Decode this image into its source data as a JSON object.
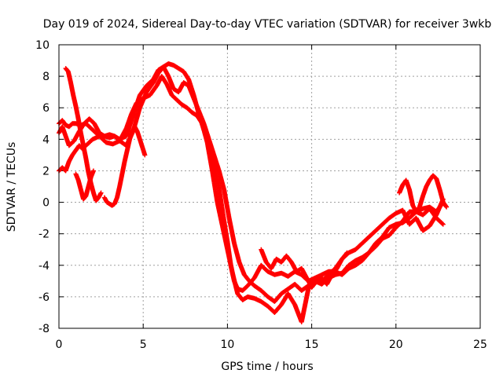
{
  "chart_data": {
    "type": "scatter",
    "title": "Day 019 of 2024, Sidereal Day-to-day VTEC variation (SDTVAR) for receiver 3wkb",
    "xlabel": "GPS time / hours",
    "ylabel": "SDTVAR / TECUs",
    "xlim": [
      0,
      25
    ],
    "ylim": [
      -8,
      10
    ],
    "xticks": [
      "0",
      "5",
      "10",
      "15",
      "20",
      "25"
    ],
    "yticks": [
      "-8",
      "-6",
      "-4",
      "-2",
      "0",
      "2",
      "4",
      "6",
      "8",
      "10"
    ],
    "grid": true,
    "marker": "plus",
    "color": "#ff0000",
    "series": [
      {
        "x": [
          0.0,
          0.2,
          0.4,
          0.6,
          0.8,
          1.0,
          1.3,
          1.6,
          2.0,
          2.4,
          2.8,
          3.2,
          3.6,
          4.0,
          4.4,
          4.8,
          5.2,
          5.6,
          5.9,
          6.2,
          6.5,
          6.8,
          7.1,
          7.4,
          7.7,
          8.0,
          8.3,
          8.6,
          8.9,
          9.2,
          9.5,
          9.8,
          10.0,
          10.2,
          10.4,
          10.6,
          10.9,
          11.2,
          11.6,
          12.0,
          12.4,
          12.8,
          13.2,
          13.6,
          14.0,
          14.4,
          14.8,
          15.2,
          15.6,
          16.0,
          16.4,
          16.8,
          17.2,
          17.6,
          18.0,
          18.4,
          18.8,
          19.2,
          19.6,
          20.0,
          20.4,
          20.8,
          21.2,
          21.6,
          22.0,
          22.4,
          22.8
        ],
        "y": [
          5.0,
          5.2,
          4.9,
          4.8,
          5.0,
          5.0,
          4.9,
          5.0,
          4.6,
          4.2,
          3.8,
          3.7,
          3.9,
          3.6,
          4.5,
          6.0,
          7.0,
          7.6,
          8.2,
          8.6,
          8.8,
          8.7,
          8.5,
          8.3,
          7.8,
          6.8,
          5.6,
          4.6,
          3.6,
          2.4,
          0.9,
          -1.2,
          -2.5,
          -4.0,
          -5.0,
          -5.5,
          -5.6,
          -5.3,
          -4.8,
          -4.0,
          -4.4,
          -4.6,
          -4.5,
          -4.7,
          -4.4,
          -4.6,
          -5.0,
          -4.8,
          -4.6,
          -4.4,
          -4.4,
          -4.6,
          -4.2,
          -4.0,
          -3.7,
          -3.2,
          -2.8,
          -2.3,
          -2.1,
          -1.6,
          -1.2,
          -0.6,
          -0.6,
          -0.8,
          -0.4,
          -1.0,
          -1.4
        ]
      },
      {
        "x": [
          0.0,
          0.2,
          0.4,
          0.6,
          0.9,
          1.2,
          1.5,
          1.8,
          2.1,
          2.4,
          2.7,
          3.0,
          3.3,
          3.6,
          4.0,
          4.3,
          4.6,
          5.0,
          5.4,
          5.8,
          6.1,
          6.4,
          6.7,
          7.0,
          7.3,
          7.6,
          7.9,
          8.2,
          8.5,
          8.8,
          9.1,
          9.4,
          9.7,
          10.0,
          10.3,
          10.6,
          10.9,
          11.2,
          11.6,
          12.0,
          12.4,
          12.8,
          13.2,
          13.6,
          14.0,
          14.4,
          14.8,
          15.2,
          15.6,
          16.0,
          16.4,
          16.8,
          17.2,
          17.6,
          18.0,
          18.4,
          18.8,
          19.2,
          19.6,
          20.0,
          20.4,
          20.8,
          21.2,
          21.6,
          22.0,
          22.4,
          22.8
        ],
        "y": [
          4.4,
          4.8,
          4.2,
          3.6,
          3.9,
          4.5,
          5.0,
          5.3,
          5.0,
          4.4,
          4.2,
          4.1,
          4.2,
          3.9,
          4.7,
          5.6,
          6.3,
          6.6,
          6.8,
          7.4,
          8.0,
          7.5,
          6.8,
          6.5,
          6.2,
          6.0,
          5.7,
          5.5,
          5.0,
          3.8,
          2.0,
          0.0,
          -1.5,
          -3.0,
          -4.5,
          -5.8,
          -6.2,
          -6.0,
          -6.1,
          -6.3,
          -6.6,
          -7.0,
          -6.5,
          -5.8,
          -6.5,
          -7.6,
          -5.5,
          -5.0,
          -5.2,
          -4.8,
          -4.6,
          -4.5,
          -4.0,
          -3.7,
          -3.5,
          -3.2,
          -2.6,
          -2.2,
          -1.6,
          -1.4,
          -1.3,
          -1.0,
          -0.6,
          -0.4,
          -0.3,
          -0.6,
          0.0
        ]
      },
      {
        "x": [
          0.0,
          0.2,
          0.4,
          0.6,
          0.8,
          1.0,
          1.2,
          1.4,
          1.6,
          1.8,
          2.0,
          2.2,
          2.4,
          2.7,
          3.0,
          3.3,
          3.6,
          4.0,
          4.4,
          4.8,
          5.2,
          5.6,
          5.9,
          6.2,
          6.5,
          6.8,
          7.1,
          7.4,
          7.7,
          8.0,
          8.3,
          8.6,
          8.9,
          9.2,
          9.5,
          9.8,
          10.1,
          10.4,
          10.7,
          11.0,
          11.3,
          11.6,
          12.0,
          12.4,
          12.8,
          13.2,
          13.6,
          14.0,
          14.4,
          14.8,
          15.2,
          15.6,
          16.0,
          16.4,
          16.8,
          17.2,
          17.6,
          18.0,
          18.4,
          18.8,
          19.2,
          19.6,
          20.0,
          20.4,
          20.8,
          21.2,
          21.6,
          22.0,
          22.4,
          22.8
        ],
        "y": [
          2.0,
          2.2,
          2.0,
          2.6,
          3.0,
          3.3,
          3.6,
          3.4,
          3.6,
          3.8,
          4.0,
          4.1,
          4.2,
          4.2,
          4.3,
          4.2,
          4.0,
          4.2,
          5.5,
          6.8,
          7.4,
          7.8,
          8.4,
          8.6,
          8.0,
          7.2,
          7.0,
          7.6,
          7.4,
          6.6,
          5.8,
          5.0,
          4.0,
          3.0,
          2.0,
          0.8,
          -1.0,
          -2.6,
          -3.8,
          -4.6,
          -5.0,
          -5.3,
          -5.6,
          -6.0,
          -6.3,
          -5.8,
          -5.5,
          -5.2,
          -5.6,
          -5.3,
          -5.0,
          -5.0,
          -4.6,
          -4.2,
          -3.6,
          -3.2,
          -3.0,
          -2.6,
          -2.2,
          -1.8,
          -1.4,
          -1.0,
          -0.7,
          -0.5,
          -1.4,
          -1.0,
          -1.8,
          -1.5,
          -0.8,
          0.2
        ]
      },
      {
        "x": [
          0.4,
          0.55,
          0.7,
          0.85,
          1.0,
          1.15,
          1.3,
          1.45,
          1.6,
          1.75,
          1.9,
          2.05,
          2.2,
          2.35,
          2.5
        ],
        "y": [
          8.5,
          8.3,
          7.6,
          6.8,
          6.1,
          5.3,
          4.4,
          3.6,
          2.8,
          1.9,
          1.2,
          0.6,
          0.1,
          0.3,
          0.6
        ]
      },
      {
        "x": [
          2.7,
          2.85,
          3.0,
          3.15,
          3.3,
          3.45,
          3.6,
          3.75,
          3.9,
          4.05,
          4.2,
          4.35,
          4.5,
          4.65,
          4.8,
          4.95,
          5.1
        ],
        "y": [
          0.3,
          0.0,
          -0.1,
          -0.2,
          -0.1,
          0.3,
          1.0,
          1.8,
          2.6,
          3.3,
          4.0,
          4.5,
          4.8,
          4.5,
          4.0,
          3.5,
          3.0
        ]
      },
      {
        "x": [
          1.0,
          1.15,
          1.3,
          1.45,
          1.6,
          1.75,
          1.9,
          2.05
        ],
        "y": [
          1.8,
          1.4,
          0.8,
          0.2,
          0.4,
          1.0,
          1.6,
          2.0
        ]
      },
      {
        "x": [
          20.2,
          20.4,
          20.6,
          20.8,
          21.0,
          21.2,
          21.4,
          21.6,
          21.8,
          22.0,
          22.2,
          22.4,
          22.6,
          22.8,
          23.0
        ],
        "y": [
          0.6,
          1.1,
          1.4,
          0.8,
          -0.2,
          -0.6,
          -0.3,
          0.4,
          1.0,
          1.4,
          1.7,
          1.5,
          0.8,
          0.0,
          -0.3
        ]
      },
      {
        "x": [
          12.0,
          12.3,
          12.6,
          12.9,
          13.2,
          13.5,
          13.8,
          14.1,
          14.4,
          14.7,
          15.0,
          15.3,
          15.6,
          15.9,
          16.2,
          16.5,
          16.8,
          17.1
        ],
        "y": [
          -3.0,
          -3.8,
          -4.2,
          -3.6,
          -3.8,
          -3.4,
          -3.8,
          -4.4,
          -4.2,
          -4.8,
          -5.4,
          -5.0,
          -4.8,
          -5.2,
          -4.6,
          -4.2,
          -3.6,
          -3.2
        ]
      }
    ]
  }
}
